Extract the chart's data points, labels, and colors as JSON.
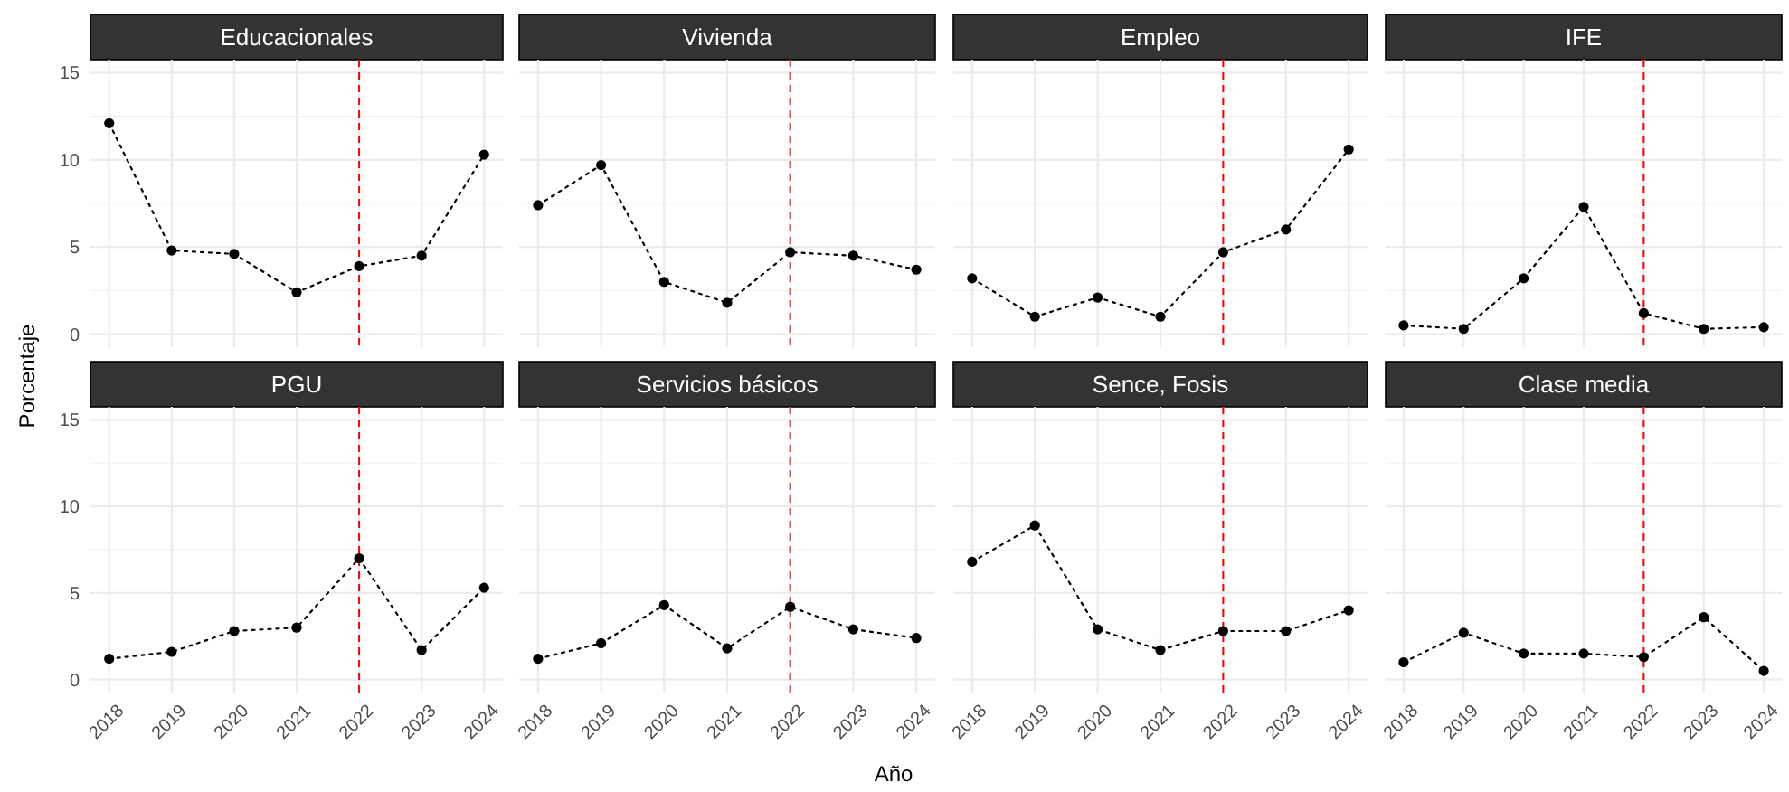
{
  "chart_data": [
    {
      "type": "line",
      "title": "Educacionales",
      "ylabel": "Porcentaje",
      "x": [
        2018,
        2019,
        2020,
        2021,
        2022,
        2023,
        2024
      ],
      "series": [
        {
          "color": "#000000",
          "values": [
            12.1,
            4.8,
            4.6,
            2.4,
            3.9,
            4.5,
            10.3
          ]
        }
      ],
      "xlim": [
        2017.7,
        2024.3
      ],
      "ylim": [
        -0.75,
        15.75
      ],
      "xticks": [
        2018,
        2019,
        2020,
        2021,
        2022,
        2023,
        2024
      ],
      "yticks": [
        0,
        5,
        10,
        15
      ],
      "grid": true,
      "marker": "circle",
      "line_style": "dotted",
      "ref_lines": [
        {
          "axis": "x",
          "value": 2022,
          "color": "#ff0000",
          "line_style": "dashed"
        }
      ],
      "tick_labels": "y"
    },
    {
      "type": "line",
      "title": "Vivienda",
      "x": [
        2018,
        2019,
        2020,
        2021,
        2022,
        2023,
        2024
      ],
      "series": [
        {
          "color": "#000000",
          "values": [
            7.4,
            9.7,
            3.0,
            1.8,
            4.7,
            4.5,
            3.7
          ]
        }
      ],
      "xlim": [
        2017.7,
        2024.3
      ],
      "ylim": [
        -0.75,
        15.75
      ],
      "xticks": [
        2018,
        2019,
        2020,
        2021,
        2022,
        2023,
        2024
      ],
      "yticks": [
        0,
        5,
        10,
        15
      ],
      "grid": true,
      "marker": "circle",
      "line_style": "dotted",
      "ref_lines": [
        {
          "axis": "x",
          "value": 2022,
          "color": "#ff0000",
          "line_style": "dashed"
        }
      ],
      "tick_labels": false
    },
    {
      "type": "line",
      "title": "Empleo",
      "x": [
        2018,
        2019,
        2020,
        2021,
        2022,
        2023,
        2024
      ],
      "series": [
        {
          "color": "#000000",
          "values": [
            3.2,
            1.0,
            2.1,
            1.0,
            4.7,
            6.0,
            10.6
          ]
        }
      ],
      "xlim": [
        2017.7,
        2024.3
      ],
      "ylim": [
        -0.75,
        15.75
      ],
      "xticks": [
        2018,
        2019,
        2020,
        2021,
        2022,
        2023,
        2024
      ],
      "yticks": [
        0,
        5,
        10,
        15
      ],
      "grid": true,
      "marker": "circle",
      "line_style": "dotted",
      "ref_lines": [
        {
          "axis": "x",
          "value": 2022,
          "color": "#ff0000",
          "line_style": "dashed"
        }
      ],
      "tick_labels": false
    },
    {
      "type": "line",
      "title": "IFE",
      "x": [
        2018,
        2019,
        2020,
        2021,
        2022,
        2023,
        2024
      ],
      "series": [
        {
          "color": "#000000",
          "values": [
            0.5,
            0.3,
            3.2,
            7.3,
            1.2,
            0.3,
            0.4
          ]
        }
      ],
      "xlim": [
        2017.7,
        2024.3
      ],
      "ylim": [
        -0.75,
        15.75
      ],
      "xticks": [
        2018,
        2019,
        2020,
        2021,
        2022,
        2023,
        2024
      ],
      "yticks": [
        0,
        5,
        10,
        15
      ],
      "grid": true,
      "marker": "circle",
      "line_style": "dotted",
      "ref_lines": [
        {
          "axis": "x",
          "value": 2022,
          "color": "#ff0000",
          "line_style": "dashed"
        }
      ],
      "tick_labels": false
    },
    {
      "type": "line",
      "title": "PGU",
      "x": [
        2018,
        2019,
        2020,
        2021,
        2022,
        2023,
        2024
      ],
      "series": [
        {
          "color": "#000000",
          "values": [
            1.2,
            1.6,
            2.8,
            3.0,
            7.0,
            1.7,
            5.3
          ]
        }
      ],
      "xlim": [
        2017.7,
        2024.3
      ],
      "ylim": [
        -0.75,
        15.75
      ],
      "xticks": [
        2018,
        2019,
        2020,
        2021,
        2022,
        2023,
        2024
      ],
      "yticks": [
        0,
        5,
        10,
        15
      ],
      "grid": true,
      "marker": "circle",
      "line_style": "dotted",
      "ref_lines": [
        {
          "axis": "x",
          "value": 2022,
          "color": "#ff0000",
          "line_style": "dashed"
        }
      ]
    },
    {
      "type": "line",
      "title": "Servicios básicos",
      "xlabel": "Año",
      "x": [
        2018,
        2019,
        2020,
        2021,
        2022,
        2023,
        2024
      ],
      "series": [
        {
          "color": "#000000",
          "values": [
            1.2,
            2.1,
            4.3,
            1.8,
            4.2,
            2.9,
            2.4
          ]
        }
      ],
      "xlim": [
        2017.7,
        2024.3
      ],
      "ylim": [
        -0.75,
        15.75
      ],
      "xticks": [
        2018,
        2019,
        2020,
        2021,
        2022,
        2023,
        2024
      ],
      "yticks": [
        0,
        5,
        10,
        15
      ],
      "grid": true,
      "marker": "circle",
      "line_style": "dotted",
      "ref_lines": [
        {
          "axis": "x",
          "value": 2022,
          "color": "#ff0000",
          "line_style": "dashed"
        }
      ],
      "tick_labels": "x"
    },
    {
      "type": "line",
      "title": "Sence, Fosis",
      "x": [
        2018,
        2019,
        2020,
        2021,
        2022,
        2023,
        2024
      ],
      "series": [
        {
          "color": "#000000",
          "values": [
            6.8,
            8.9,
            2.9,
            1.7,
            2.8,
            2.8,
            4.0
          ]
        }
      ],
      "xlim": [
        2017.7,
        2024.3
      ],
      "ylim": [
        -0.75,
        15.75
      ],
      "xticks": [
        2018,
        2019,
        2020,
        2021,
        2022,
        2023,
        2024
      ],
      "yticks": [
        0,
        5,
        10,
        15
      ],
      "grid": true,
      "marker": "circle",
      "line_style": "dotted",
      "ref_lines": [
        {
          "axis": "x",
          "value": 2022,
          "color": "#ff0000",
          "line_style": "dashed"
        }
      ],
      "tick_labels": "x"
    },
    {
      "type": "line",
      "title": "Clase media",
      "x": [
        2018,
        2019,
        2020,
        2021,
        2022,
        2023,
        2024
      ],
      "series": [
        {
          "color": "#000000",
          "values": [
            1.0,
            2.7,
            1.5,
            1.5,
            1.3,
            3.6,
            0.5
          ]
        }
      ],
      "xlim": [
        2017.7,
        2024.3
      ],
      "ylim": [
        -0.75,
        15.75
      ],
      "xticks": [
        2018,
        2019,
        2020,
        2021,
        2022,
        2023,
        2024
      ],
      "yticks": [
        0,
        5,
        10,
        15
      ],
      "grid": true,
      "marker": "circle",
      "line_style": "dotted",
      "ref_lines": [
        {
          "axis": "x",
          "value": 2022,
          "color": "#ff0000",
          "line_style": "dashed"
        }
      ],
      "tick_labels": "x"
    }
  ]
}
